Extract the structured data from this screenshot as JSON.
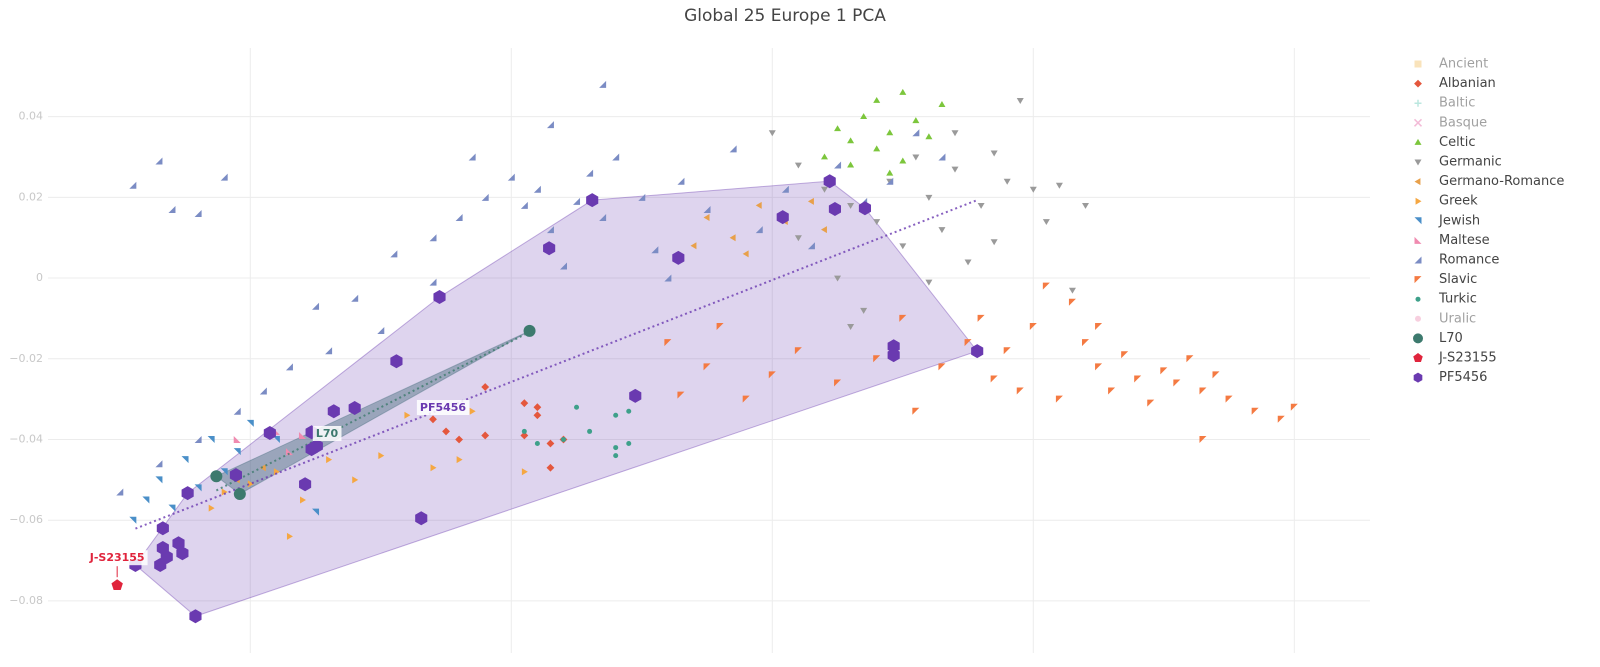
{
  "chart_data": {
    "type": "scatter",
    "title": "Global 25 Europe 1 PCA",
    "xlim": [
      -0.0355,
      0.0658
    ],
    "ylim": [
      -0.0929,
      0.057
    ],
    "xticks": [
      -0.02,
      0,
      0.02,
      0.04,
      0.06
    ],
    "xtick_labels": false,
    "yticks": [
      0.04,
      0.02,
      0,
      {
        "value": -0.02,
        "label": "−0.02"
      },
      {
        "value": -0.04,
        "label": "−0.04"
      },
      {
        "value": -0.06,
        "label": "−0.06"
      },
      {
        "value": -0.08,
        "label": "−0.08"
      }
    ],
    "grid": true,
    "legend": "right",
    "series": [
      {
        "name": "Ancient",
        "color": "#f5c97a",
        "symbol": "square",
        "marker_size": 3.5,
        "visible": false,
        "x": [],
        "values": []
      },
      {
        "name": "Albanian",
        "color": "#e4573d",
        "symbol": "diamond",
        "marker_size": 3,
        "visible": true,
        "x": [
          -0.006,
          -0.005,
          -0.004,
          -0.002,
          0.001,
          0.002,
          0.001,
          0.003,
          0.004,
          0.003,
          -0.002,
          0.002
        ],
        "values": [
          -0.035,
          -0.038,
          -0.04,
          -0.039,
          -0.031,
          -0.032,
          -0.039,
          -0.041,
          -0.04,
          -0.047,
          -0.027,
          -0.034
        ]
      },
      {
        "name": "Baltic",
        "color": "#7ad0c0",
        "symbol": "cross",
        "marker_size": 3.5,
        "visible": false,
        "x": [],
        "values": []
      },
      {
        "name": "Basque",
        "color": "#e87ab0",
        "symbol": "x",
        "marker_size": 3.5,
        "visible": false,
        "x": [],
        "values": []
      },
      {
        "name": "Celtic",
        "color": "#7cc63c",
        "symbol": "triangle-up",
        "marker_size": 3.5,
        "visible": true,
        "x": [
          0.024,
          0.025,
          0.026,
          0.027,
          0.028,
          0.028,
          0.029,
          0.03,
          0.03,
          0.031,
          0.032,
          0.033,
          0.026,
          0.029
        ],
        "values": [
          0.03,
          0.037,
          0.034,
          0.04,
          0.032,
          0.044,
          0.036,
          0.029,
          0.046,
          0.039,
          0.035,
          0.043,
          0.028,
          0.026
        ]
      },
      {
        "name": "Germanic",
        "color": "#9a9a9a",
        "symbol": "triangle-down",
        "marker_size": 3.5,
        "visible": true,
        "x": [
          0.02,
          0.022,
          0.024,
          0.026,
          0.028,
          0.029,
          0.03,
          0.031,
          0.032,
          0.033,
          0.034,
          0.035,
          0.036,
          0.037,
          0.038,
          0.039,
          0.04,
          0.041,
          0.042,
          0.043,
          0.044,
          0.022,
          0.025,
          0.027,
          0.026,
          0.032,
          0.037,
          0.034
        ],
        "values": [
          0.036,
          0.028,
          0.022,
          0.018,
          0.014,
          0.024,
          0.008,
          0.03,
          0.02,
          0.012,
          0.027,
          0.004,
          0.018,
          0.031,
          0.024,
          0.044,
          0.022,
          0.014,
          0.023,
          -0.003,
          0.018,
          0.01,
          0.0,
          -0.008,
          -0.012,
          -0.001,
          0.009,
          0.036
        ]
      },
      {
        "name": "Germano-Romance",
        "color": "#e8a04a",
        "symbol": "triangle-left",
        "marker_size": 3.5,
        "visible": true,
        "x": [
          0.015,
          0.017,
          0.019,
          0.021,
          0.023,
          0.018,
          0.014,
          0.024,
          -0.021,
          -0.019
        ],
        "values": [
          0.015,
          0.01,
          0.018,
          0.014,
          0.019,
          0.006,
          0.008,
          0.012,
          -0.05,
          -0.047
        ]
      },
      {
        "name": "Greek",
        "color": "#f5a742",
        "symbol": "triangle-right",
        "marker_size": 3.5,
        "visible": true,
        "x": [
          -0.023,
          -0.022,
          -0.02,
          -0.018,
          -0.016,
          -0.014,
          -0.012,
          -0.01,
          -0.008,
          -0.006,
          -0.004,
          -0.003,
          -0.017,
          0.001
        ],
        "values": [
          -0.057,
          -0.053,
          -0.051,
          -0.048,
          -0.055,
          -0.045,
          -0.05,
          -0.044,
          -0.034,
          -0.047,
          -0.045,
          -0.033,
          -0.064,
          -0.048
        ]
      },
      {
        "name": "Jewish",
        "color": "#4a8fc8",
        "symbol": "triangle-ne",
        "marker_size": 3.5,
        "visible": true,
        "x": [
          -0.029,
          -0.028,
          -0.027,
          -0.026,
          -0.025,
          -0.024,
          -0.023,
          -0.022,
          -0.021,
          -0.02,
          -0.018,
          -0.015
        ],
        "values": [
          -0.06,
          -0.055,
          -0.05,
          -0.057,
          -0.045,
          -0.052,
          -0.04,
          -0.048,
          -0.043,
          -0.036,
          -0.04,
          -0.058
        ]
      },
      {
        "name": "Maltese",
        "color": "#f08bb0",
        "symbol": "triangle-sw",
        "marker_size": 3.5,
        "visible": true,
        "x": [
          -0.021,
          -0.018,
          -0.016,
          -0.017
        ],
        "values": [
          -0.04,
          -0.038,
          -0.039,
          -0.043
        ]
      },
      {
        "name": "Romance",
        "color": "#7b8cc4",
        "symbol": "triangle-se",
        "marker_size": 3.5,
        "visible": true,
        "x": [
          -0.027,
          -0.029,
          -0.026,
          -0.024,
          -0.022,
          -0.015,
          -0.012,
          -0.009,
          -0.006,
          -0.004,
          -0.002,
          0.0,
          0.001,
          0.002,
          0.003,
          0.005,
          0.006,
          0.007,
          0.008,
          0.01,
          0.011,
          0.013,
          0.015,
          0.017,
          0.019,
          0.021,
          0.023,
          0.025,
          0.027,
          0.029,
          0.007,
          0.003,
          -0.003,
          -0.01,
          -0.014,
          -0.017,
          -0.019,
          -0.021,
          -0.024,
          -0.027,
          -0.03,
          0.004,
          -0.006,
          0.012,
          0.031,
          0.033
        ],
        "values": [
          0.029,
          0.023,
          0.017,
          0.016,
          0.025,
          -0.007,
          -0.005,
          0.006,
          0.01,
          0.015,
          0.02,
          0.025,
          0.018,
          0.022,
          0.012,
          0.019,
          0.026,
          0.015,
          0.03,
          0.02,
          0.007,
          0.024,
          0.017,
          0.032,
          0.012,
          0.022,
          0.008,
          0.028,
          0.019,
          0.024,
          0.048,
          0.038,
          0.03,
          -0.013,
          -0.018,
          -0.022,
          -0.028,
          -0.033,
          -0.04,
          -0.046,
          -0.053,
          0.003,
          -0.001,
          0.0,
          0.036,
          0.03
        ]
      },
      {
        "name": "Slavic",
        "color": "#f47a42",
        "symbol": "triangle-nw",
        "marker_size": 3.5,
        "visible": true,
        "x": [
          0.041,
          0.043,
          0.04,
          0.036,
          0.035,
          0.038,
          0.037,
          0.039,
          0.042,
          0.044,
          0.045,
          0.046,
          0.047,
          0.048,
          0.049,
          0.05,
          0.051,
          0.052,
          0.053,
          0.054,
          0.055,
          0.057,
          0.059,
          0.06,
          0.053,
          0.045,
          0.03,
          0.028,
          0.025,
          0.022,
          0.02,
          0.018,
          0.015,
          0.013,
          0.012,
          0.033,
          0.016,
          0.031
        ],
        "values": [
          -0.002,
          -0.006,
          -0.012,
          -0.01,
          -0.016,
          -0.018,
          -0.025,
          -0.028,
          -0.03,
          -0.016,
          -0.022,
          -0.028,
          -0.019,
          -0.025,
          -0.031,
          -0.023,
          -0.026,
          -0.02,
          -0.028,
          -0.024,
          -0.03,
          -0.033,
          -0.035,
          -0.032,
          -0.04,
          -0.012,
          -0.01,
          -0.02,
          -0.026,
          -0.018,
          -0.024,
          -0.03,
          -0.022,
          -0.029,
          -0.016,
          -0.022,
          -0.012,
          -0.033
        ]
      },
      {
        "name": "Turkic",
        "color": "#3ea08a",
        "symbol": "circle",
        "marker_size": 2.5,
        "visible": true,
        "x": [
          0.001,
          0.002,
          0.004,
          0.005,
          0.006,
          0.008,
          0.008,
          0.009,
          0.008,
          0.009
        ],
        "values": [
          -0.038,
          -0.041,
          -0.04,
          -0.032,
          -0.038,
          -0.034,
          -0.042,
          -0.041,
          -0.044,
          -0.033
        ]
      },
      {
        "name": "Uralic",
        "color": "#f0a0c0",
        "symbol": "circle",
        "marker_size": 3,
        "visible": false,
        "x": [],
        "values": []
      },
      {
        "name": "L70",
        "color": "#3d7a6e",
        "symbol": "circle",
        "marker_size": 6,
        "visible": true,
        "hull": true,
        "trendline": true,
        "x": [
          -0.0226,
          -0.0208,
          0.0014
        ],
        "values": [
          -0.0491,
          -0.0535,
          -0.0131
        ]
      },
      {
        "name": "J-S23155",
        "color": "#e0243c",
        "symbol": "pentagon",
        "marker_size": 6,
        "visible": true,
        "x": [
          -0.0302
        ],
        "values": [
          -0.0761
        ]
      },
      {
        "name": "PF5456",
        "color": "#6a3ab0",
        "symbol": "hexagon",
        "marker_size": 7,
        "visible": true,
        "hull": true,
        "trendline": true,
        "x": [
          -0.0242,
          -0.0288,
          -0.0269,
          -0.0267,
          -0.0264,
          -0.0255,
          -0.0252,
          -0.0267,
          -0.0248,
          -0.0211,
          -0.0185,
          -0.0158,
          -0.0153,
          -0.0153,
          -0.0149,
          -0.0136,
          -0.012,
          -0.0088,
          -0.0055,
          -0.0069,
          0.0029,
          0.0062,
          0.0095,
          0.0128,
          0.0208,
          0.0244,
          0.0248,
          0.0271,
          0.0293,
          0.0293,
          0.0357
        ],
        "values": [
          -0.0838,
          -0.0711,
          -0.0711,
          -0.0669,
          -0.0691,
          -0.0657,
          -0.0682,
          -0.062,
          -0.0533,
          -0.0488,
          -0.0384,
          -0.0511,
          -0.0382,
          -0.0424,
          -0.0416,
          -0.033,
          -0.0322,
          -0.0206,
          -0.0047,
          -0.0595,
          0.0074,
          0.0193,
          -0.0292,
          0.005,
          0.0151,
          0.024,
          0.0171,
          0.0173,
          -0.0169,
          -0.0191,
          -0.0181
        ]
      }
    ]
  }
}
